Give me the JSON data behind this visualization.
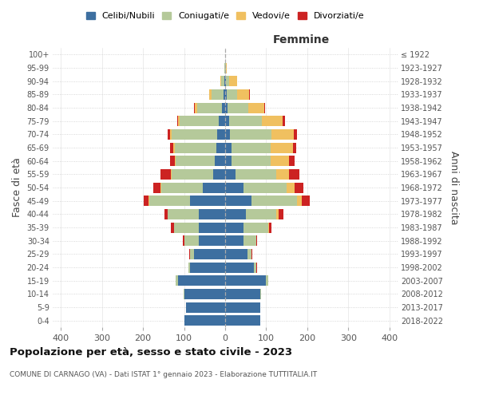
{
  "age_groups": [
    "0-4",
    "5-9",
    "10-14",
    "15-19",
    "20-24",
    "25-29",
    "30-34",
    "35-39",
    "40-44",
    "45-49",
    "50-54",
    "55-59",
    "60-64",
    "65-69",
    "70-74",
    "75-79",
    "80-84",
    "85-89",
    "90-94",
    "95-99",
    "100+"
  ],
  "birth_years": [
    "2018-2022",
    "2013-2017",
    "2008-2012",
    "2003-2007",
    "1998-2002",
    "1993-1997",
    "1988-1992",
    "1983-1987",
    "1978-1982",
    "1973-1977",
    "1968-1972",
    "1963-1967",
    "1958-1962",
    "1953-1957",
    "1948-1952",
    "1943-1947",
    "1938-1942",
    "1933-1937",
    "1928-1932",
    "1923-1927",
    "≤ 1922"
  ],
  "male": {
    "celibi": [
      100,
      95,
      100,
      115,
      85,
      75,
      65,
      65,
      65,
      85,
      55,
      30,
      25,
      22,
      20,
      15,
      8,
      4,
      2,
      0,
      0
    ],
    "coniugati": [
      0,
      0,
      2,
      5,
      5,
      10,
      35,
      60,
      75,
      100,
      100,
      100,
      95,
      100,
      110,
      95,
      60,
      30,
      8,
      2,
      0
    ],
    "vedovi": [
      0,
      0,
      0,
      0,
      0,
      0,
      0,
      0,
      0,
      2,
      2,
      2,
      2,
      5,
      5,
      5,
      5,
      5,
      2,
      0,
      0
    ],
    "divorziati": [
      0,
      0,
      0,
      0,
      0,
      2,
      4,
      8,
      8,
      12,
      18,
      25,
      12,
      8,
      5,
      2,
      2,
      0,
      0,
      0,
      0
    ]
  },
  "female": {
    "nubili": [
      85,
      85,
      85,
      100,
      70,
      55,
      45,
      45,
      50,
      65,
      45,
      25,
      15,
      15,
      12,
      10,
      6,
      4,
      2,
      0,
      0
    ],
    "coniugate": [
      0,
      0,
      2,
      5,
      5,
      10,
      30,
      60,
      75,
      110,
      105,
      100,
      95,
      95,
      100,
      80,
      50,
      25,
      8,
      2,
      0
    ],
    "vedove": [
      0,
      0,
      0,
      0,
      0,
      0,
      0,
      2,
      5,
      12,
      20,
      30,
      45,
      55,
      55,
      50,
      40,
      30,
      20,
      2,
      0
    ],
    "divorziate": [
      0,
      0,
      0,
      0,
      2,
      2,
      2,
      5,
      12,
      20,
      20,
      25,
      15,
      8,
      8,
      5,
      2,
      2,
      0,
      0,
      0
    ]
  },
  "colors": {
    "celibi": "#3d6fa0",
    "coniugati": "#b5c99a",
    "vedovi": "#f0c060",
    "divorziati": "#cc2222"
  },
  "xlim": 420,
  "title": "Popolazione per età, sesso e stato civile - 2023",
  "subtitle": "COMUNE DI CARNAGO (VA) - Dati ISTAT 1° gennaio 2023 - Elaborazione TUTTITALIA.IT",
  "ylabel_left": "Fasce di età",
  "ylabel_right": "Anni di nascita",
  "xlabel_right": "Femmine",
  "legend_labels": [
    "Celibi/Nubili",
    "Coniugati/e",
    "Vedovi/e",
    "Divorziati/e"
  ]
}
